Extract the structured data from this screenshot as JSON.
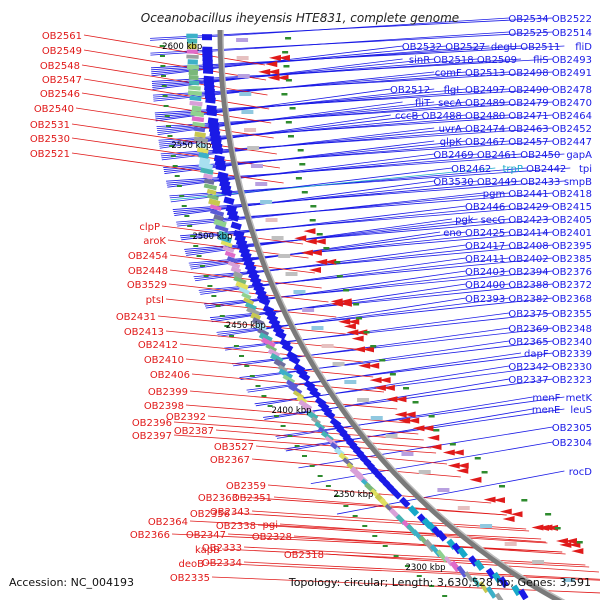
{
  "title": "Oceanobacillus iheyensis HTE831, complete genome",
  "footer": {
    "accession": "Accession: NC_004193",
    "summary": "Topology: circular; Length: 3,630,528 bp; Genes: 3,591"
  },
  "colors": {
    "forward": "#1a1ae6",
    "reverse": "#e01a1a",
    "ring": "#7a7a7a",
    "tick": "#2e8b2e",
    "highlight": "#17a9c9"
  },
  "kbp_ticks": [
    "2600 kbp",
    "2550 kbp",
    "2500 kbp",
    "2450 kbp",
    "2400 kbp",
    "2350 kbp",
    "2300 kbp"
  ],
  "forward_labels": [
    [
      "OB2534",
      "OB2522"
    ],
    [
      "OB2525",
      "OB2514"
    ],
    [
      "OB2532",
      "OB2527",
      "degU",
      "OB2511",
      "fliD"
    ],
    [
      "sinR",
      "OB2518",
      "OB2509",
      "fliS",
      "OB2493"
    ],
    [
      "comF",
      "OB2513",
      "OB2498",
      "OB2491"
    ],
    [
      "OB2512",
      "flgL",
      "OB2497",
      "OB2490",
      "OB2478"
    ],
    [
      "fliT",
      "secA",
      "OB2489",
      "OB2479",
      "OB2470"
    ],
    [
      "cccB",
      "OB2488",
      "OB2480",
      "OB2471",
      "OB2464"
    ],
    [
      "uvrA",
      "OB2474",
      "OB2463",
      "OB2452"
    ],
    [
      "glpK",
      "OB2467",
      "OB2457",
      "OB2447"
    ],
    [
      "OB2469",
      "OB2461",
      "OB2450",
      "gapA"
    ],
    [
      "OB2462",
      "trpP",
      "OB2442",
      "tpi"
    ],
    [
      "OB3530",
      "OB2449",
      "OB2433",
      "smpB"
    ],
    [
      "pgm",
      "OB2441",
      "OB2418"
    ],
    [
      "OB2446",
      "OB2429",
      "OB2415"
    ],
    [
      "pgk",
      "secG",
      "OB2423",
      "OB2405"
    ],
    [
      "eno",
      "OB2425",
      "OB2414",
      "OB2401"
    ],
    [
      "OB2417",
      "OB2408",
      "OB2395"
    ],
    [
      "OB2411",
      "OB2402",
      "OB2385"
    ],
    [
      "OB2403",
      "OB2394",
      "OB2376"
    ],
    [
      "OB2400",
      "OB2388",
      "OB2372"
    ],
    [
      "OB2393",
      "OB2382",
      "OB2368"
    ],
    [
      "OB2375",
      "OB2355"
    ],
    [
      "OB2369",
      "OB2348"
    ],
    [
      "OB2365",
      "OB2340"
    ],
    [
      "dapF",
      "OB2339"
    ],
    [
      "OB2342",
      "OB2330"
    ],
    [
      "OB2337",
      "OB2323"
    ],
    [
      "menF",
      "metK"
    ],
    [
      "menE",
      "leuS"
    ],
    [
      "OB2305"
    ],
    [
      "OB2304"
    ],
    [
      "rocD"
    ]
  ],
  "reverse_labels": [
    "OB2561",
    "OB2549",
    "OB2548",
    "OB2547",
    "OB2546",
    "OB2540",
    "OB2531",
    "OB2530",
    "OB2521",
    "clpP",
    "aroK",
    "OB2454",
    "OB2448",
    "OB3529",
    "ptsI",
    "OB2431",
    "OB2413",
    "OB2412",
    "OB2410",
    "OB2406",
    "OB2399",
    "OB2398",
    "OB2392",
    "OB2396",
    "OB2397",
    "OB2387",
    "OB3527",
    "OB2367",
    "OB2359",
    "OB2363",
    "OB2351",
    "OB2356",
    "OB2343",
    "OB2364",
    "OB2338",
    "OB2366",
    "OB2347",
    "pgi",
    "OB2333",
    "kapB",
    "OB2328",
    "deoB",
    "OB2334",
    "OB2318",
    "OB2335"
  ]
}
